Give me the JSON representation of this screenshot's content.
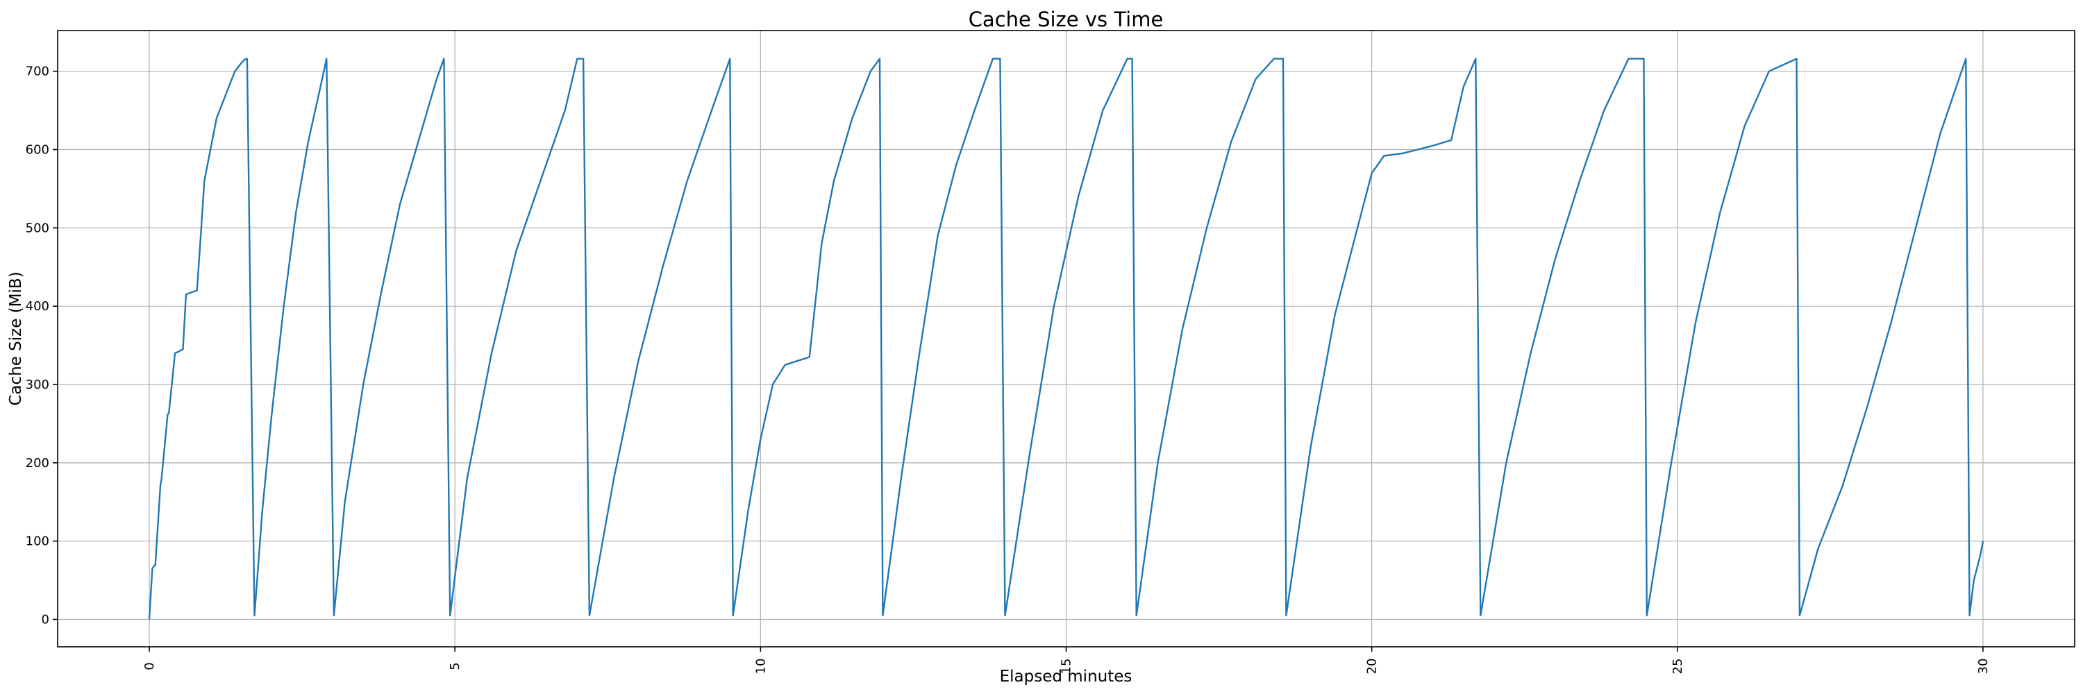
{
  "chart_data": {
    "type": "line",
    "title": "Cache Size vs Time",
    "xlabel": "Elapsed minutes",
    "ylabel": "Cache Size (MiB)",
    "xlim": [
      -1.5,
      31.5
    ],
    "ylim": [
      -35,
      752
    ],
    "x_ticks": [
      0,
      5,
      10,
      15,
      20,
      25,
      30
    ],
    "y_ticks": [
      0,
      100,
      200,
      300,
      400,
      500,
      600,
      700
    ],
    "grid": true,
    "color": "#1f77b4",
    "series": [
      {
        "x": [
          0.0,
          0.05,
          0.1,
          0.18,
          0.2,
          0.3,
          0.32,
          0.42,
          0.48,
          0.55,
          0.6,
          0.7,
          0.78,
          0.85,
          0.9,
          1.0,
          1.1,
          1.2,
          1.3,
          1.4,
          1.5,
          1.56,
          1.6,
          1.72,
          1.85,
          2.0,
          2.2,
          2.4,
          2.6,
          2.8,
          2.9,
          3.02,
          3.2,
          3.5,
          3.8,
          4.1,
          4.4,
          4.7,
          4.82,
          4.92,
          5.2,
          5.6,
          6.0,
          6.4,
          6.8,
          7.0,
          7.1,
          7.2,
          7.6,
          8.0,
          8.4,
          8.8,
          9.2,
          9.5,
          9.55,
          9.8,
          10.0,
          10.2,
          10.4,
          10.8,
          11.0,
          11.2,
          11.5,
          11.8,
          11.95,
          12.0,
          12.3,
          12.6,
          12.9,
          13.2,
          13.5,
          13.8,
          13.92,
          14.0,
          14.4,
          14.8,
          15.2,
          15.6,
          16.0,
          16.08,
          16.15,
          16.5,
          16.9,
          17.3,
          17.7,
          18.1,
          18.4,
          18.55,
          18.6,
          19.0,
          19.4,
          19.8,
          20.0,
          20.2,
          20.5,
          21.0,
          21.3,
          21.5,
          21.7,
          21.78,
          22.2,
          22.6,
          23.0,
          23.4,
          23.8,
          24.2,
          24.45,
          24.5,
          24.9,
          25.3,
          25.7,
          26.1,
          26.5,
          26.95,
          27.0,
          27.3,
          27.7,
          28.1,
          28.5,
          28.9,
          29.3,
          29.72,
          29.78,
          29.85,
          29.95,
          30.0
        ],
        "y": [
          0,
          65,
          70,
          170,
          180,
          262,
          263,
          340,
          342,
          345,
          415,
          418,
          420,
          500,
          560,
          600,
          640,
          660,
          680,
          700,
          710,
          715,
          716,
          5,
          140,
          260,
          400,
          520,
          610,
          680,
          716,
          5,
          150,
          300,
          420,
          530,
          610,
          690,
          716,
          5,
          180,
          340,
          470,
          560,
          650,
          716,
          716,
          5,
          180,
          330,
          450,
          560,
          650,
          716,
          5,
          140,
          230,
          300,
          325,
          335,
          480,
          560,
          640,
          700,
          716,
          5,
          180,
          340,
          490,
          580,
          650,
          716,
          716,
          5,
          210,
          400,
          540,
          650,
          716,
          716,
          5,
          200,
          370,
          500,
          610,
          690,
          716,
          716,
          5,
          220,
          390,
          510,
          570,
          592,
          595,
          605,
          612,
          680,
          716,
          5,
          200,
          340,
          460,
          560,
          650,
          716,
          716,
          5,
          200,
          380,
          520,
          630,
          700,
          716,
          5,
          90,
          170,
          270,
          380,
          500,
          620,
          716,
          5,
          50,
          80,
          100
        ]
      }
    ]
  }
}
